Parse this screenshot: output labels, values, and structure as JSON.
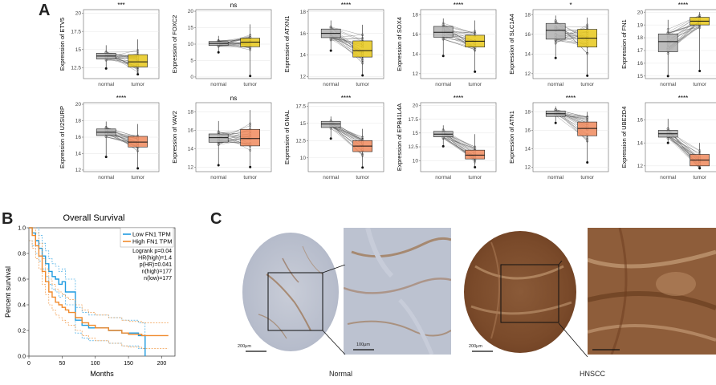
{
  "panel_labels": {
    "a": "A",
    "b": "B",
    "c": "C"
  },
  "chart_data": [
    {
      "type": "box-paired",
      "gene": "ETV5",
      "ylabel": "Expression of ETV5",
      "significance": "***",
      "categories": [
        "normal",
        "tumor"
      ],
      "yticks": [
        12.5,
        15.0,
        17.5,
        20.0
      ],
      "ylim": [
        11,
        20.5
      ],
      "normal": {
        "min": 12.4,
        "q1": 13.7,
        "median": 14.1,
        "q3": 14.5,
        "max": 15.6
      },
      "tumor": {
        "min": 11.6,
        "q1": 12.6,
        "median": 13.3,
        "q3": 14.3,
        "max": 16.4
      },
      "tumor_color": "#e8c81a"
    },
    {
      "type": "box-paired",
      "gene": "FOXC2",
      "ylabel": "Expression of FOXC2",
      "significance": "ns",
      "categories": [
        "normal",
        "tumor"
      ],
      "yticks": [
        0,
        5,
        10,
        15,
        20
      ],
      "ylim": [
        -0.5,
        20.5
      ],
      "normal": {
        "min": 7.5,
        "q1": 9.6,
        "median": 10.2,
        "q3": 10.8,
        "max": 12.5
      },
      "tumor": {
        "min": 0.3,
        "q1": 9.2,
        "median": 10.6,
        "q3": 11.8,
        "max": 16.0
      },
      "tumor_color": "#e8c81a"
    },
    {
      "type": "box-paired",
      "gene": "ATXN1",
      "ylabel": "Expression of ATXN1",
      "significance": "****",
      "categories": [
        "normal",
        "tumor"
      ],
      "yticks": [
        12,
        14,
        16,
        18
      ],
      "ylim": [
        11.8,
        18.2
      ],
      "normal": {
        "min": 14.4,
        "q1": 15.6,
        "median": 16.0,
        "q3": 16.4,
        "max": 17.2
      },
      "tumor": {
        "min": 12.1,
        "q1": 13.8,
        "median": 14.4,
        "q3": 15.3,
        "max": 16.8
      },
      "tumor_color": "#e8c81a"
    },
    {
      "type": "box-paired",
      "gene": "SOX4",
      "ylabel": "Expression of SOX4",
      "significance": "****",
      "categories": [
        "normal",
        "tumor"
      ],
      "yticks": [
        12,
        14,
        16,
        18
      ],
      "ylim": [
        11.5,
        18.5
      ],
      "normal": {
        "min": 13.8,
        "q1": 15.7,
        "median": 16.2,
        "q3": 16.8,
        "max": 17.6
      },
      "tumor": {
        "min": 12.2,
        "q1": 14.7,
        "median": 15.3,
        "q3": 15.9,
        "max": 17.4
      },
      "tumor_color": "#e8c81a"
    },
    {
      "type": "box-paired",
      "gene": "SLC1A4",
      "ylabel": "Expression of SLC1A4",
      "significance": "*",
      "categories": [
        "normal",
        "tumor"
      ],
      "yticks": [
        12,
        14,
        16,
        18
      ],
      "ylim": [
        11.5,
        18.5
      ],
      "normal": {
        "min": 13.6,
        "q1": 15.5,
        "median": 16.4,
        "q3": 17.1,
        "max": 17.9
      },
      "tumor": {
        "min": 11.8,
        "q1": 14.7,
        "median": 15.6,
        "q3": 16.5,
        "max": 17.7
      },
      "tumor_color": "#e8c81a"
    },
    {
      "type": "box-paired",
      "gene": "FN1",
      "ylabel": "Expression of FN1",
      "significance": "****",
      "categories": [
        "normal",
        "tumor"
      ],
      "yticks": [
        15,
        16,
        17,
        18,
        19,
        20
      ],
      "ylim": [
        14.8,
        20.2
      ],
      "normal": {
        "min": 15.0,
        "q1": 16.9,
        "median": 17.7,
        "q3": 18.3,
        "max": 19.4
      },
      "tumor": {
        "min": 15.4,
        "q1": 19.0,
        "median": 19.3,
        "q3": 19.6,
        "max": 20.0
      },
      "tumor_color": "#e8c81a"
    },
    {
      "type": "box-paired",
      "gene": "U2SURP",
      "ylabel": "Expression of U2SURP",
      "significance": "****",
      "categories": [
        "normal",
        "tumor"
      ],
      "yticks": [
        12,
        14,
        16,
        18,
        20
      ],
      "ylim": [
        11.8,
        20.2
      ],
      "normal": {
        "min": 13.6,
        "q1": 16.2,
        "median": 16.6,
        "q3": 17.0,
        "max": 17.9
      },
      "tumor": {
        "min": 12.2,
        "q1": 14.8,
        "median": 15.4,
        "q3": 16.1,
        "max": 17.6
      },
      "tumor_color": "#f08a5d"
    },
    {
      "type": "box-paired",
      "gene": "VAV2",
      "ylabel": "Expression of VAV2",
      "significance": "ns",
      "categories": [
        "normal",
        "tumor"
      ],
      "yticks": [
        12,
        14,
        16,
        18
      ],
      "ylim": [
        11.5,
        19
      ],
      "normal": {
        "min": 12.2,
        "q1": 14.7,
        "median": 15.2,
        "q3": 15.6,
        "max": 17.0
      },
      "tumor": {
        "min": 12.0,
        "q1": 14.3,
        "median": 15.1,
        "q3": 16.1,
        "max": 18.2
      },
      "tumor_color": "#f08a5d"
    },
    {
      "type": "box-paired",
      "gene": "GNAL",
      "ylabel": "Expression of GNAL",
      "significance": "****",
      "categories": [
        "normal",
        "tumor"
      ],
      "yticks": [
        10.0,
        12.5,
        15.0,
        17.5
      ],
      "ylim": [
        8,
        18
      ],
      "normal": {
        "min": 12.8,
        "q1": 14.4,
        "median": 14.9,
        "q3": 15.3,
        "max": 16.0
      },
      "tumor": {
        "min": 8.6,
        "q1": 10.9,
        "median": 11.7,
        "q3": 12.5,
        "max": 14.2
      },
      "tumor_color": "#f08a5d"
    },
    {
      "type": "box-paired",
      "gene": "EPB41L4A",
      "ylabel": "Expression of EPB41L4A",
      "significance": "****",
      "categories": [
        "normal",
        "tumor"
      ],
      "yticks": [
        10.0,
        12.5,
        15.0,
        17.5,
        20.0
      ],
      "ylim": [
        8,
        20.5
      ],
      "normal": {
        "min": 12.6,
        "q1": 14.3,
        "median": 14.8,
        "q3": 15.3,
        "max": 16.4
      },
      "tumor": {
        "min": 8.8,
        "q1": 10.3,
        "median": 11.0,
        "q3": 11.9,
        "max": 14.8
      },
      "tumor_color": "#f08a5d"
    },
    {
      "type": "box-paired",
      "gene": "ATN1",
      "ylabel": "Expression of ATN1",
      "significance": "****",
      "categories": [
        "normal",
        "tumor"
      ],
      "yticks": [
        12,
        14,
        16,
        18
      ],
      "ylim": [
        11.5,
        19
      ],
      "normal": {
        "min": 16.8,
        "q1": 17.5,
        "median": 17.8,
        "q3": 18.1,
        "max": 18.6
      },
      "tumor": {
        "min": 12.5,
        "q1": 15.4,
        "median": 16.2,
        "q3": 16.9,
        "max": 18.0
      },
      "tumor_color": "#f08a5d"
    },
    {
      "type": "box-paired",
      "gene": "UBE2D4",
      "ylabel": "Expression of UBE2D4",
      "significance": "****",
      "categories": [
        "normal",
        "tumor"
      ],
      "yticks": [
        12,
        14,
        16
      ],
      "ylim": [
        11.5,
        17.5
      ],
      "normal": {
        "min": 14.0,
        "q1": 14.5,
        "median": 14.8,
        "q3": 15.1,
        "max": 16.1
      },
      "tumor": {
        "min": 11.8,
        "q1": 12.0,
        "median": 12.5,
        "q3": 13.0,
        "max": 14.0
      },
      "tumor_color": "#f08a5d"
    },
    {
      "type": "line",
      "subtype": "kaplan-meier",
      "title": "Overall Survival",
      "xlabel": "Months",
      "ylabel": "Percent survival",
      "xlim": [
        0,
        220
      ],
      "ylim": [
        0,
        1
      ],
      "xticks": [
        0,
        50,
        100,
        150,
        200
      ],
      "yticks": [
        0.0,
        0.2,
        0.4,
        0.6,
        0.8,
        1.0
      ],
      "series": [
        {
          "name": "Low FN1 TPM",
          "color": "#1f9be0",
          "x": [
            0,
            5,
            10,
            15,
            20,
            25,
            30,
            35,
            40,
            45,
            50,
            55,
            60,
            70,
            80,
            90,
            100,
            120,
            140,
            150,
            165,
            172,
            175
          ],
          "y": [
            1.0,
            0.96,
            0.9,
            0.84,
            0.78,
            0.72,
            0.66,
            0.62,
            0.6,
            0.56,
            0.58,
            0.5,
            0.5,
            0.28,
            0.24,
            0.22,
            0.22,
            0.2,
            0.18,
            0.18,
            0.16,
            0.16,
            0.0
          ]
        },
        {
          "name": "High FN1 TPM",
          "color": "#f08a2c",
          "x": [
            0,
            5,
            10,
            15,
            20,
            25,
            30,
            35,
            40,
            45,
            50,
            55,
            60,
            70,
            80,
            90,
            100,
            120,
            140,
            150,
            170,
            200,
            210
          ],
          "y": [
            1.0,
            0.94,
            0.86,
            0.78,
            0.66,
            0.58,
            0.5,
            0.46,
            0.42,
            0.4,
            0.38,
            0.36,
            0.34,
            0.3,
            0.26,
            0.24,
            0.22,
            0.2,
            0.18,
            0.17,
            0.16,
            0.16,
            0.16
          ]
        }
      ],
      "stats": [
        "Logrank p=0.04",
        "HR(high)=1.4",
        "p(HR)=0.041",
        "n(high)=177",
        "n(low)=177"
      ]
    }
  ],
  "ihc": {
    "normal_label": "Normal",
    "hnscc_label": "HNSCC",
    "scale_200": "200μm",
    "scale_100": "100μm"
  }
}
